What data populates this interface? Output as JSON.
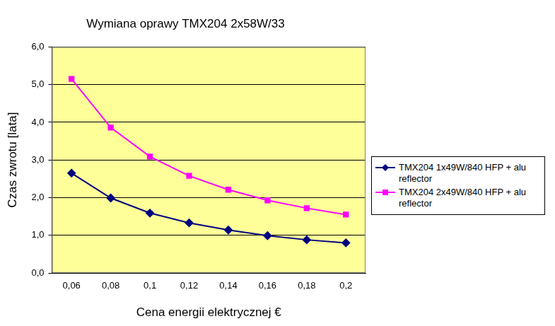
{
  "chart_data": {
    "type": "line",
    "title": "Wymiana oprawy TMX204 2x58W/33",
    "x_label": "Cena energii elektrycznej €",
    "y_label": "Czas zwrotu [lata]",
    "categories": [
      "0,06",
      "0,08",
      "0,1",
      "0,12",
      "0,14",
      "0,16",
      "0,18",
      "0,2"
    ],
    "series": [
      {
        "name": "TMX204 1x49W/840 HFP + alu reflector",
        "color": "#000080",
        "marker": "diamond",
        "values": [
          2.65,
          1.99,
          1.59,
          1.33,
          1.14,
          0.99,
          0.88,
          0.8
        ]
      },
      {
        "name": "TMX204 2x49W/840 HFP + alu reflector",
        "color": "#ff00ff",
        "marker": "square",
        "values": [
          5.15,
          3.86,
          3.09,
          2.58,
          2.21,
          1.93,
          1.72,
          1.55
        ]
      }
    ],
    "ylim": [
      0,
      6
    ],
    "yticks": [
      {
        "value": 0,
        "label": "0,0"
      },
      {
        "value": 1,
        "label": "1,0"
      },
      {
        "value": 2,
        "label": "2,0"
      },
      {
        "value": 3,
        "label": "3,0"
      },
      {
        "value": 4,
        "label": "4,0"
      },
      {
        "value": 5,
        "label": "5,0"
      },
      {
        "value": 6,
        "label": "6,0"
      }
    ],
    "grid": true,
    "legend": "right"
  }
}
